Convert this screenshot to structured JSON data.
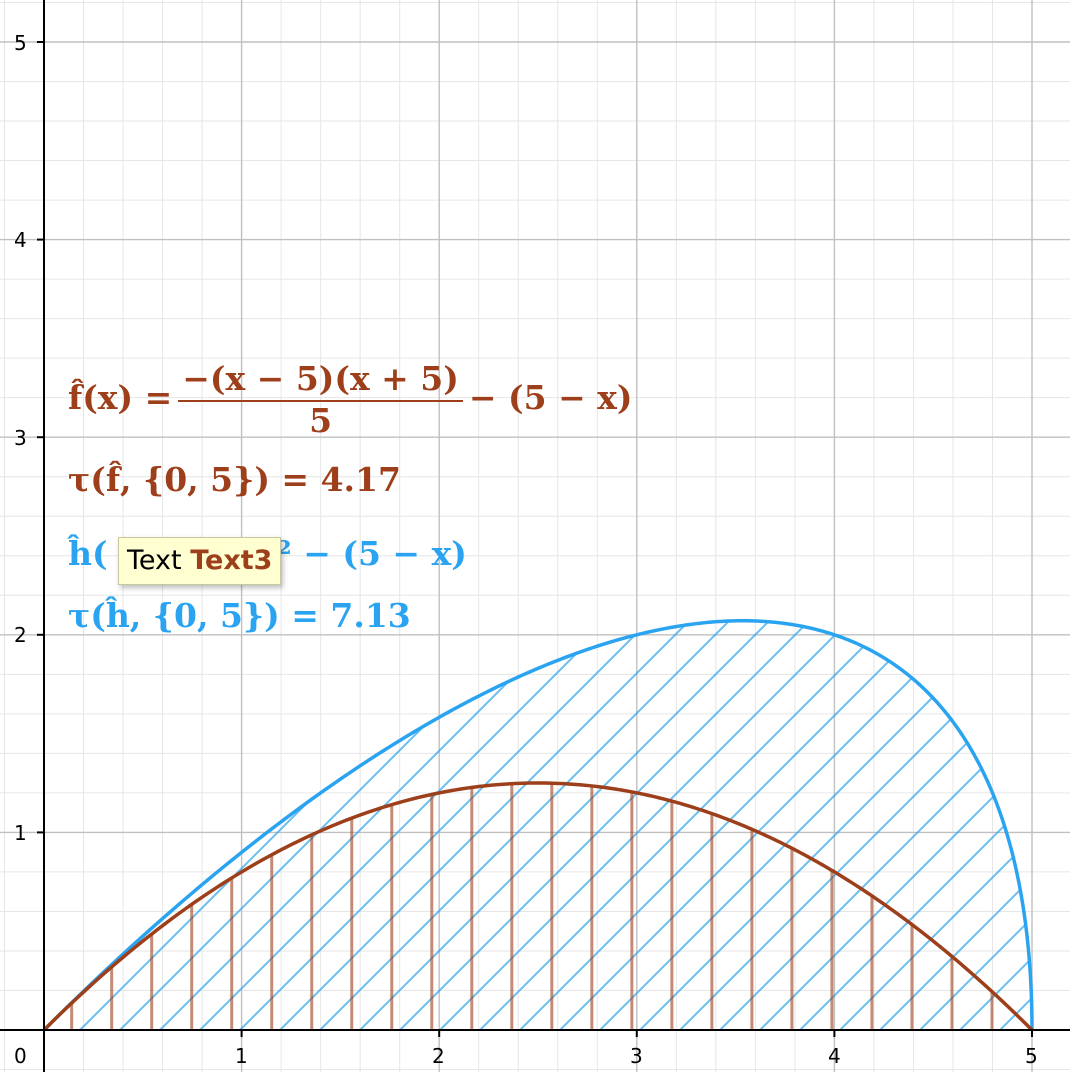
{
  "graphics": {
    "origin_label": "0",
    "x_ticks": [
      "1",
      "2",
      "3",
      "4",
      "5"
    ],
    "y_ticks": [
      "1",
      "2",
      "3",
      "4",
      "5"
    ],
    "grid": true,
    "x_range": [
      0,
      5.2
    ],
    "y_range": [
      0,
      5.2
    ]
  },
  "formulas": {
    "f_def_lhs": "f̂(x) =",
    "f_def_num": "−(x − 5)(x + 5)",
    "f_def_den": "5",
    "f_def_rhs": "− (5 − x)",
    "tau_f": "τ(f̂, {0, 5}) = 4.17",
    "h_def_visible_start": "ĥ(",
    "h_def_visible_end": "x² − (5 − x)",
    "tau_h": "τ(ĥ, {0, 5}) = 7.13"
  },
  "tooltip": {
    "prefix": "Text",
    "object_name": "Text3"
  },
  "colors": {
    "f_curve": "#9c3f1a",
    "h_curve": "#2aa3f0",
    "major_grid": "#c0c0c0",
    "minor_grid": "#e6e6e6",
    "axis": "#000000"
  },
  "chart_data": {
    "type": "line",
    "series": [
      {
        "name": "f̂",
        "formula": "f(x) = -(x-5)(x+5)/5 - (5-x)",
        "x": [
          0,
          0.5,
          1,
          1.5,
          2,
          2.5,
          3,
          3.5,
          4,
          4.5,
          5
        ],
        "values": [
          0,
          0.45,
          0.8,
          1.05,
          1.2,
          1.25,
          1.2,
          1.05,
          0.8,
          0.45,
          0
        ],
        "color": "#9c3f1a",
        "shading": "vertical hatch"
      },
      {
        "name": "ĥ",
        "formula": "h(x) = sqrt(25 - x^2) - (5 - x)",
        "x": [
          0,
          0.5,
          1,
          1.5,
          2,
          2.5,
          3,
          3.5,
          4,
          4.5,
          4.8,
          5
        ],
        "values": [
          0,
          0.47,
          0.9,
          1.27,
          1.58,
          1.83,
          2.0,
          2.07,
          2.0,
          1.68,
          1.2,
          0
        ],
        "color": "#2aa3f0",
        "shading": "diagonal hatch"
      }
    ],
    "x_ticks": [
      1,
      2,
      3,
      4,
      5
    ],
    "y_ticks": [
      1,
      2,
      3,
      4,
      5
    ],
    "xlim": [
      0,
      5.2
    ],
    "ylim": [
      0,
      5.2
    ],
    "grid": true
  }
}
